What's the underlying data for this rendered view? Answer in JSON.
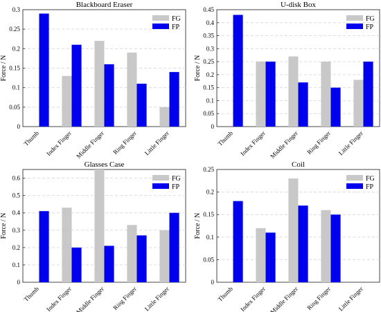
{
  "colors": {
    "fg": "#c8c8c8",
    "fp": "#0000ee",
    "grid": "#dcdcdc",
    "axis": "#444444"
  },
  "chart_data": [
    {
      "type": "bar",
      "title": "Blackboard Eraser",
      "ylabel": "Force / N",
      "categories": [
        "Thumb",
        "Index Finger",
        "Middle Finger",
        "Ring Finger",
        "Little Finger"
      ],
      "series": [
        {
          "name": "FG",
          "values": [
            0,
            0.13,
            0.22,
            0.19,
            0.05
          ]
        },
        {
          "name": "FP",
          "values": [
            0.29,
            0.21,
            0.16,
            0.11,
            0.14
          ]
        }
      ],
      "ylim": [
        0,
        0.3
      ],
      "yticks": [
        "0",
        "0.05",
        "0.1",
        "0.15",
        "0.2",
        "0.25",
        "0.3"
      ],
      "grid": "horizontal dashed",
      "legend": "top-right"
    },
    {
      "type": "bar",
      "title": "U-disk Box",
      "ylabel": "Force / N",
      "categories": [
        "Thumb",
        "Index Finger",
        "Middle Finger",
        "Ring Finger",
        "Little Finger"
      ],
      "series": [
        {
          "name": "FG",
          "values": [
            0,
            0.25,
            0.27,
            0.25,
            0.18
          ]
        },
        {
          "name": "FP",
          "values": [
            0.43,
            0.25,
            0.17,
            0.15,
            0.25
          ]
        }
      ],
      "ylim": [
        0,
        0.45
      ],
      "yticks": [
        "0",
        "0.05",
        "0.1",
        "0.15",
        "0.2",
        "0.25",
        "0.3",
        "0.35",
        "0.4",
        "0.45"
      ],
      "grid": "horizontal dashed",
      "legend": "top-right"
    },
    {
      "type": "bar",
      "title": "Glasses Case",
      "ylabel": "Force / N",
      "categories": [
        "Thumb",
        "Index Finger",
        "Middle Finger",
        "Ring Finger",
        "Little Finger"
      ],
      "series": [
        {
          "name": "FG",
          "values": [
            0,
            0.43,
            0.65,
            0.33,
            0.3
          ]
        },
        {
          "name": "FP",
          "values": [
            0.41,
            0.2,
            0.21,
            0.27,
            0.4
          ]
        }
      ],
      "ylim": [
        0,
        0.65
      ],
      "yticks": [
        "0",
        "0.1",
        "0.2",
        "0.3",
        "0.4",
        "0.5",
        "0.6"
      ],
      "grid": "horizontal dashed",
      "legend": "top-right"
    },
    {
      "type": "bar",
      "title": "Coil",
      "ylabel": "Force / N",
      "categories": [
        "Thumb",
        "Index Finger",
        "Middle Finger",
        "Ring Finger",
        "Little Finger"
      ],
      "series": [
        {
          "name": "FG",
          "values": [
            0,
            0.12,
            0.23,
            0.16,
            0
          ]
        },
        {
          "name": "FP",
          "values": [
            0.18,
            0.11,
            0.17,
            0.15,
            0
          ]
        }
      ],
      "ylim": [
        0,
        0.25
      ],
      "yticks": [
        "0",
        "0.05",
        "0.1",
        "0.15",
        "0.2",
        "0.25"
      ],
      "grid": "horizontal dashed",
      "legend": "top-right"
    }
  ]
}
